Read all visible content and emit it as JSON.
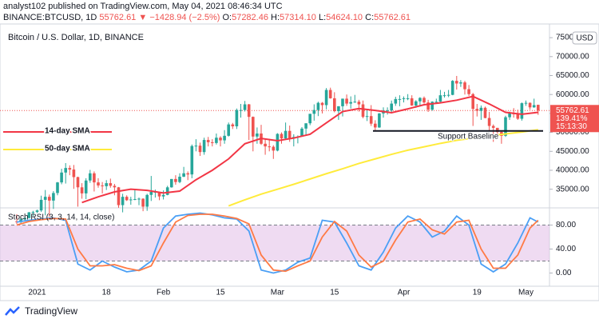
{
  "header": {
    "published": "analyst102 published on TradingView.com, May 04, 2021 08:46:34 UTC",
    "symbol": "BINANCE:BTCUSD, 1D",
    "change": "▼ −1428.94 (−2.5%)",
    "ohlc": [
      {
        "label": "O:",
        "value": "57282.46"
      },
      {
        "label": "H:",
        "value": "57314.10"
      },
      {
        "label": "L:",
        "value": "54624.10"
      },
      {
        "label": "C:",
        "value": "55762.61"
      }
    ]
  },
  "chart_data": [
    {
      "type": "candlestick",
      "title": "Bitcoin / U.S. Dollar, 1D, BINANCE",
      "currency": "USD",
      "up_color": "#26a69a",
      "down_color": "#ef5350",
      "categories": [
        null,
        null,
        null,
        null,
        null,
        "2021",
        null,
        null,
        null,
        null,
        null,
        null,
        null,
        null,
        null,
        null,
        null,
        null,
        null,
        null,
        null,
        null,
        "18",
        null,
        null,
        null,
        null,
        null,
        null,
        null,
        null,
        null,
        null,
        null,
        null,
        null,
        "Feb",
        null,
        null,
        null,
        null,
        null,
        null,
        null,
        null,
        null,
        null,
        null,
        null,
        null,
        "15",
        null,
        null,
        null,
        null,
        null,
        null,
        null,
        null,
        null,
        null,
        null,
        null,
        null,
        "Mar",
        null,
        null,
        null,
        null,
        null,
        null,
        null,
        null,
        null,
        null,
        null,
        null,
        null,
        "15",
        null,
        null,
        null,
        null,
        null,
        null,
        null,
        null,
        null,
        null,
        null,
        null,
        null,
        null,
        null,
        null,
        "Apr",
        null,
        null,
        null,
        null,
        null,
        null,
        null,
        null,
        null,
        null,
        null,
        null,
        null,
        null,
        null,
        null,
        null,
        "19",
        null,
        null,
        null,
        null,
        null,
        null,
        null,
        null,
        null,
        null,
        null,
        "May",
        null,
        null,
        null
      ],
      "open": [
        26500,
        26300,
        27050,
        27400,
        28900,
        29000,
        29400,
        32200,
        33000,
        32000,
        34000,
        36800,
        39400,
        40600,
        40200,
        38200,
        35500,
        33900,
        37300,
        39200,
        36800,
        36000,
        35800,
        36600,
        35900,
        35500,
        30800,
        33000,
        32100,
        32300,
        32400,
        32500,
        30400,
        33500,
        34300,
        34300,
        33100,
        33500,
        35500,
        37700,
        36900,
        38300,
        39200,
        38900,
        46400,
        46500,
        44800,
        48000,
        47400,
        47200,
        48600,
        47900,
        49100,
        52100,
        51600,
        55900,
        55900,
        57400,
        54100,
        48900,
        49700,
        47000,
        46300,
        46200,
        45200,
        49600,
        48400,
        50400,
        48400,
        48800,
        48900,
        51000,
        52400,
        54900,
        55900,
        57800,
        57200,
        61200,
        59000,
        55600,
        56900,
        58900,
        57600,
        58000,
        58100,
        57400,
        54100,
        54300,
        52300,
        51300,
        55000,
        55800,
        55800,
        57600,
        58800,
        58800,
        59000,
        59000,
        57100,
        58200,
        59100,
        57900,
        56000,
        58100,
        58100,
        59800,
        59800,
        59900,
        63600,
        62900,
        63200,
        61400,
        60100,
        56200,
        55700,
        56500,
        53800,
        51700,
        51200,
        50100,
        49100,
        54000,
        55000,
        54900,
        53600,
        57700,
        57800,
        56600,
        57282.46
      ],
      "high": [
        28400,
        27400,
        27600,
        29000,
        29300,
        29600,
        33300,
        34800,
        33600,
        34500,
        36900,
        40400,
        41900,
        41300,
        41400,
        38300,
        36600,
        37900,
        40100,
        39700,
        37900,
        36900,
        37400,
        37800,
        36400,
        35600,
        33800,
        33400,
        33000,
        34900,
        32800,
        32600,
        33800,
        38500,
        34900,
        34300,
        34700,
        35900,
        37700,
        38700,
        39200,
        40900,
        39700,
        46800,
        48200,
        47300,
        48600,
        48800,
        48200,
        49700,
        49000,
        50600,
        52600,
        52500,
        56300,
        57500,
        58300,
        57500,
        54200,
        51300,
        52000,
        48400,
        48300,
        46600,
        49800,
        50000,
        52600,
        51800,
        49500,
        49200,
        51400,
        52400,
        54900,
        57400,
        58100,
        58000,
        61700,
        61800,
        60600,
        56900,
        58900,
        60000,
        59500,
        59900,
        58600,
        58400,
        55800,
        57200,
        53200,
        55100,
        56600,
        56600,
        58400,
        59400,
        59800,
        59500,
        60100,
        59800,
        58500,
        59300,
        59500,
        58600,
        58200,
        58900,
        61200,
        60700,
        61200,
        63800,
        64900,
        63800,
        63600,
        62500,
        60400,
        57500,
        57100,
        56800,
        55400,
        52100,
        51200,
        50500,
        54400,
        55500,
        56400,
        56000,
        57900,
        58400,
        57900,
        58900,
        57314.1
      ],
      "low": [
        25800,
        25900,
        26500,
        27300,
        27900,
        28700,
        29000,
        28100,
        27700,
        29800,
        33400,
        36300,
        36500,
        38700,
        35100,
        30400,
        32500,
        32400,
        36700,
        34400,
        35400,
        33900,
        34800,
        35400,
        33400,
        30100,
        28900,
        31900,
        30900,
        32100,
        30800,
        29200,
        29300,
        31900,
        32800,
        32100,
        32300,
        33400,
        35400,
        36200,
        36600,
        38200,
        37400,
        37900,
        45000,
        43800,
        44100,
        46300,
        46300,
        46800,
        46300,
        47000,
        48900,
        50900,
        50900,
        53900,
        55500,
        48000,
        45000,
        47000,
        46700,
        44100,
        45000,
        43000,
        45000,
        47000,
        48100,
        47500,
        46300,
        47100,
        48900,
        49300,
        51900,
        53100,
        54300,
        55000,
        56100,
        58900,
        55300,
        53300,
        54200,
        57000,
        56300,
        57800,
        55500,
        53700,
        53000,
        51700,
        50400,
        51200,
        53900,
        54700,
        55000,
        57000,
        56900,
        57900,
        58500,
        57000,
        56500,
        56800,
        57600,
        55400,
        55700,
        57700,
        58000,
        59200,
        59300,
        59800,
        61300,
        62000,
        60000,
        59600,
        51700,
        54200,
        53300,
        53700,
        50400,
        47500,
        48800,
        47000,
        48800,
        53300,
        53900,
        53300,
        53100,
        57000,
        56000,
        56500,
        54624.1
      ],
      "close": [
        26300,
        27050,
        27400,
        28900,
        29000,
        29400,
        32200,
        33000,
        32000,
        34000,
        36800,
        39400,
        40600,
        40200,
        38200,
        35500,
        33900,
        37300,
        39200,
        36800,
        36000,
        35800,
        36600,
        35900,
        35500,
        30800,
        33000,
        32100,
        32300,
        32400,
        32500,
        30400,
        33500,
        34300,
        34300,
        33100,
        33500,
        35500,
        37700,
        36900,
        38300,
        39200,
        38900,
        46400,
        46500,
        44800,
        48000,
        47400,
        47200,
        48600,
        47900,
        49100,
        52100,
        51600,
        55900,
        55900,
        57400,
        54100,
        48900,
        49700,
        47000,
        46300,
        46200,
        45200,
        49600,
        48400,
        50400,
        48400,
        48800,
        48900,
        51000,
        52400,
        54900,
        55900,
        57800,
        57200,
        61200,
        59000,
        55600,
        56900,
        58900,
        57600,
        58000,
        58100,
        57400,
        54100,
        54300,
        52300,
        51300,
        55000,
        55800,
        55800,
        57600,
        58800,
        58800,
        59000,
        59000,
        57100,
        58200,
        59100,
        57900,
        56000,
        58100,
        58100,
        59800,
        59800,
        59900,
        63600,
        62900,
        63200,
        61400,
        60100,
        56200,
        55700,
        56500,
        53800,
        51700,
        51200,
        50100,
        49100,
        54000,
        55000,
        54900,
        53600,
        57700,
        57800,
        56600,
        57200,
        55762.61
      ],
      "series": [
        {
          "name": "14-day SMA",
          "color": "#f23645",
          "x": [
            16,
            20,
            24,
            28,
            32,
            36,
            40,
            44,
            48,
            52,
            56,
            60,
            64,
            68,
            72,
            76,
            80,
            84,
            88,
            92,
            96,
            100,
            104,
            108,
            112,
            116,
            120,
            124,
            128
          ],
          "values": [
            31500,
            33000,
            34300,
            35000,
            34700,
            34000,
            34500,
            37500,
            40000,
            43000,
            47000,
            48400,
            47800,
            48500,
            49500,
            52500,
            55500,
            56300,
            55800,
            55200,
            56200,
            57300,
            57800,
            58500,
            59500,
            57500,
            55300,
            54800,
            55300
          ]
        },
        {
          "name": "50-day SMA",
          "color": "#ffeb3b",
          "x": [
            52,
            56,
            60,
            64,
            68,
            72,
            76,
            80,
            84,
            88,
            92,
            96,
            100,
            104,
            108,
            112,
            116,
            120,
            124,
            128
          ],
          "values": [
            30600,
            32200,
            33700,
            35000,
            36300,
            37700,
            39100,
            40400,
            41800,
            43000,
            44200,
            45300,
            46200,
            47100,
            47900,
            48500,
            49100,
            49600,
            50100,
            50700
          ]
        }
      ],
      "support": {
        "label": "Support Baseline",
        "value": 50400,
        "color": "#131722"
      },
      "price_tag": {
        "change_pct": "139.41%",
        "countdown": "15:13:30",
        "color": "#ef5350"
      },
      "ylim": [
        30500,
        76500
      ],
      "yticks": [
        {
          "value": 35000,
          "label": "35000.00"
        },
        {
          "value": 40000,
          "label": "40000.00"
        },
        {
          "value": 45000,
          "label": "45000.00"
        },
        {
          "value": 50000,
          "label": "50000.00"
        },
        {
          "value": 55000,
          "label": "55000.00"
        },
        {
          "value": 60000,
          "label": "60000.00"
        },
        {
          "value": 65000,
          "label": "65000.00"
        },
        {
          "value": 70000,
          "label": "70000.00"
        },
        {
          "value": 75000,
          "label": "75000.00"
        }
      ]
    },
    {
      "type": "line",
      "title": "Stoch RSI (3, 3, 14, 14, close)",
      "x": [
        0,
        3,
        6,
        9,
        12,
        15,
        18,
        21,
        24,
        27,
        30,
        33,
        36,
        39,
        42,
        45,
        48,
        51,
        54,
        57,
        60,
        63,
        66,
        69,
        72,
        75,
        78,
        81,
        84,
        87,
        90,
        93,
        96,
        99,
        102,
        105,
        108,
        111,
        114,
        117,
        120,
        123,
        126,
        128
      ],
      "series": [
        {
          "color": "#4a9ff5",
          "values": [
            85,
            88,
            90,
            92,
            88,
            15,
            5,
            20,
            10,
            2,
            5,
            20,
            75,
            95,
            98,
            100,
            97,
            92,
            90,
            70,
            5,
            0,
            5,
            18,
            25,
            88,
            85,
            50,
            12,
            5,
            35,
            75,
            95,
            85,
            60,
            70,
            95,
            80,
            15,
            2,
            15,
            50,
            92,
            85
          ]
        },
        {
          "color": "#ff7a45",
          "values": [
            80,
            86,
            89,
            91,
            90,
            40,
            12,
            12,
            14,
            8,
            4,
            12,
            50,
            85,
            96,
            98,
            98,
            95,
            91,
            82,
            30,
            5,
            3,
            12,
            20,
            60,
            86,
            70,
            30,
            10,
            20,
            55,
            85,
            90,
            72,
            65,
            85,
            88,
            40,
            8,
            8,
            30,
            75,
            88
          ]
        }
      ],
      "band": [
        20,
        80
      ],
      "band_color": "#e1bee7",
      "ylim": [
        -22,
        106
      ],
      "yticks": [
        {
          "value": 80,
          "label": "80.00"
        },
        {
          "value": 40,
          "label": "40.00"
        },
        {
          "value": 0,
          "label": "0.00"
        }
      ]
    }
  ],
  "footer": {
    "brand": "TradingView"
  }
}
